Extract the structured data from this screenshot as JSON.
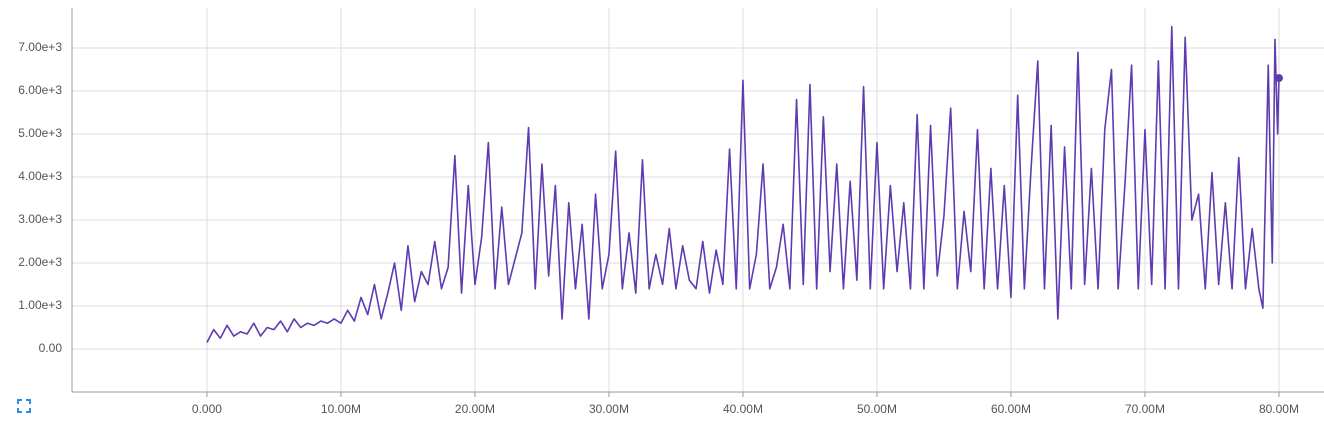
{
  "chart_data": {
    "type": "line",
    "color": "#5e3bb0",
    "grid": true,
    "marker_last": true,
    "xlim": [
      -10070000,
      83360000
    ],
    "ylim": [
      -1000,
      7930
    ],
    "xticks": [
      {
        "value": 0,
        "label": "0.000"
      },
      {
        "value": 10000000,
        "label": "10.00M"
      },
      {
        "value": 20000000,
        "label": "20.00M"
      },
      {
        "value": 30000000,
        "label": "30.00M"
      },
      {
        "value": 40000000,
        "label": "40.00M"
      },
      {
        "value": 50000000,
        "label": "50.00M"
      },
      {
        "value": 60000000,
        "label": "60.00M"
      },
      {
        "value": 70000000,
        "label": "70.00M"
      },
      {
        "value": 80000000,
        "label": "80.00M"
      }
    ],
    "yticks": [
      {
        "value": 0,
        "label": "0.00"
      },
      {
        "value": 1000,
        "label": "1.00e+3"
      },
      {
        "value": 2000,
        "label": "2.00e+3"
      },
      {
        "value": 3000,
        "label": "3.00e+3"
      },
      {
        "value": 4000,
        "label": "4.00e+3"
      },
      {
        "value": 5000,
        "label": "5.00e+3"
      },
      {
        "value": 6000,
        "label": "6.00e+3"
      },
      {
        "value": 7000,
        "label": "7.00e+3"
      }
    ],
    "x": [
      0,
      500000,
      1000000,
      1500000,
      2000000,
      2500000,
      3000000,
      3500000,
      4000000,
      4500000,
      5000000,
      5500000,
      6000000,
      6500000,
      7000000,
      7500000,
      8000000,
      8500000,
      9000000,
      9500000,
      10000000,
      10500000,
      11000000,
      11500000,
      12000000,
      12500000,
      13000000,
      13500000,
      14000000,
      14500000,
      15000000,
      15500000,
      16000000,
      16500000,
      17000000,
      17500000,
      18000000,
      18500000,
      19000000,
      19500000,
      20000000,
      20500000,
      21000000,
      21500000,
      22000000,
      22500000,
      23000000,
      23500000,
      24000000,
      24500000,
      25000000,
      25500000,
      26000000,
      26500000,
      27000000,
      27500000,
      28000000,
      28500000,
      29000000,
      29500000,
      30000000,
      30500000,
      31000000,
      31500000,
      32000000,
      32500000,
      33000000,
      33500000,
      34000000,
      34500000,
      35000000,
      35500000,
      36000000,
      36500000,
      37000000,
      37500000,
      38000000,
      38500000,
      39000000,
      39500000,
      40000000,
      40500000,
      41000000,
      41500000,
      42000000,
      42500000,
      43000000,
      43500000,
      44000000,
      44500000,
      45000000,
      45500000,
      46000000,
      46500000,
      47000000,
      47500000,
      48000000,
      48500000,
      49000000,
      49500000,
      50000000,
      50500000,
      51000000,
      51500000,
      52000000,
      52500000,
      53000000,
      53500000,
      54000000,
      54500000,
      55000000,
      55500000,
      56000000,
      56500000,
      57000000,
      57500000,
      58000000,
      58500000,
      59000000,
      59500000,
      60000000,
      60500000,
      61000000,
      61500000,
      62000000,
      62500000,
      63000000,
      63500000,
      64000000,
      64500000,
      65000000,
      65500000,
      66000000,
      66500000,
      67000000,
      67500000,
      68000000,
      68500000,
      69000000,
      69500000,
      70000000,
      70500000,
      71000000,
      71500000,
      72000000,
      72500000,
      73000000,
      73500000,
      74000000,
      74500000,
      75000000,
      75500000,
      76000000,
      76500000,
      77000000,
      77500000,
      78000000,
      78500000,
      78800000,
      79200000,
      79500000,
      79700000,
      79900000,
      80000000
    ],
    "values": [
      150,
      450,
      250,
      550,
      300,
      400,
      350,
      600,
      300,
      500,
      450,
      650,
      400,
      700,
      500,
      600,
      550,
      650,
      600,
      700,
      600,
      900,
      650,
      1200,
      800,
      1500,
      700,
      1300,
      2000,
      900,
      2400,
      1100,
      1800,
      1500,
      2500,
      1400,
      1900,
      4500,
      1300,
      3800,
      1500,
      2600,
      4800,
      1400,
      3300,
      1500,
      2100,
      2700,
      5150,
      1400,
      4300,
      1700,
      3800,
      700,
      3400,
      1400,
      2900,
      700,
      3600,
      1400,
      2200,
      4600,
      1400,
      2700,
      1300,
      4400,
      1400,
      2200,
      1500,
      2800,
      1400,
      2400,
      1600,
      1400,
      2500,
      1300,
      2300,
      1500,
      4650,
      1400,
      6250,
      1400,
      2200,
      4300,
      1400,
      1900,
      2900,
      1400,
      5800,
      1500,
      6150,
      1400,
      5400,
      1800,
      4300,
      1400,
      3900,
      1600,
      6100,
      1400,
      4800,
      1400,
      3800,
      1800,
      3400,
      1400,
      5450,
      1400,
      5200,
      1700,
      3100,
      5600,
      1400,
      3200,
      1800,
      5100,
      1400,
      4200,
      1400,
      3800,
      1200,
      5900,
      1400,
      4200,
      6700,
      1400,
      5200,
      700,
      4700,
      1400,
      6900,
      1500,
      4200,
      1400,
      5100,
      6500,
      1400,
      3800,
      6600,
      1400,
      5100,
      1500,
      6700,
      1400,
      7500,
      1400,
      7250,
      3000,
      3600,
      1400,
      4100,
      1500,
      3400,
      1400,
      4450,
      1400,
      2800,
      1400,
      950,
      6600,
      2000,
      7200,
      5000,
      6300
    ]
  }
}
